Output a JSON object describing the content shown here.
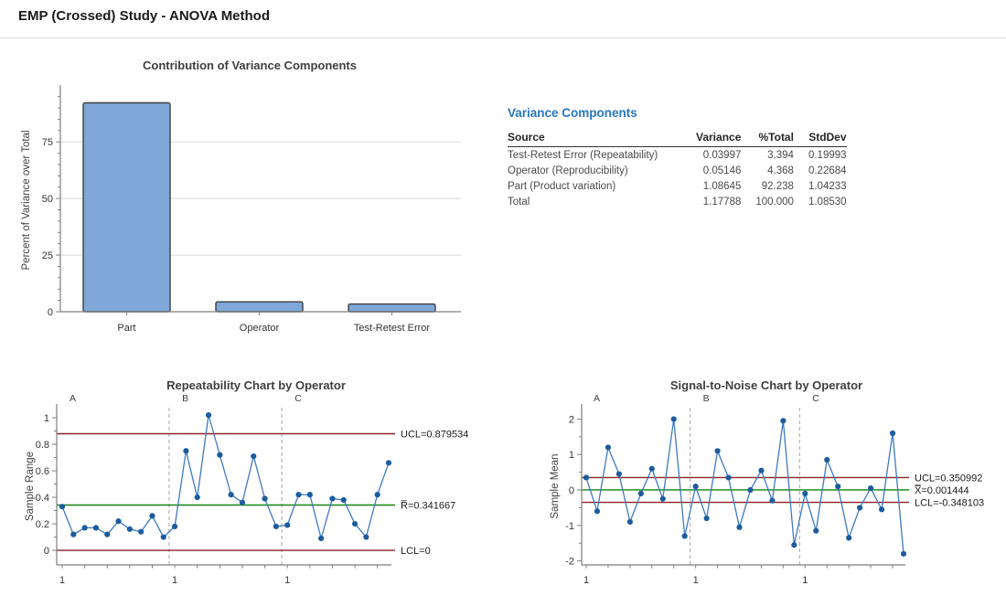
{
  "page": {
    "title": "EMP (Crossed) Study - ANOVA Method"
  },
  "colors": {
    "bar_fill": "#7FA8D9",
    "bar_border": "#3F3F3F",
    "line": "#3E7AC0",
    "point": "#1C5C9E",
    "limit": "#8B2222",
    "center": "#128412",
    "divider": "#A6A6A6",
    "grid": "#D9D9D9",
    "axis": "#7F7F7F",
    "tick_text": "#333333",
    "heading_blue": "#2776BE",
    "title_text": "#3F3F3F"
  },
  "table": {
    "title": "Variance Components",
    "headers": [
      "Source",
      "Variance",
      "%Total",
      "StdDev"
    ],
    "rows": [
      [
        "Test-Retest Error (Repeatability)",
        "0.03997",
        "3.394",
        "0.19993"
      ],
      [
        "Operator (Reproducibility)",
        "0.05146",
        "4.368",
        "0.22684"
      ],
      [
        "Part (Product variation)",
        "1.08645",
        "92.238",
        "1.04233"
      ],
      [
        "Total",
        "1.17788",
        "100.000",
        "1.08530"
      ]
    ]
  },
  "chart_data": [
    {
      "type": "bar",
      "title": "Contribution of Variance Components",
      "xlabel": "",
      "ylabel": "Percent of Variance over Total",
      "categories": [
        "Part",
        "Operator",
        "Test-Retest Error"
      ],
      "values": [
        92.238,
        4.368,
        3.394
      ],
      "yticks": [
        0,
        25,
        50,
        75
      ],
      "minor_step": 5,
      "ylim": [
        0,
        98.5
      ],
      "grid": true,
      "legend": "none"
    },
    {
      "type": "line",
      "subtype": "control-chart",
      "title": "Repeatability Chart by Operator",
      "ylabel": "Sample Range",
      "groups": [
        "A",
        "B",
        "C"
      ],
      "group_start_label": "1",
      "series": [
        {
          "name": "Sample Range",
          "values": [
            0.33,
            0.12,
            0.17,
            0.17,
            0.12,
            0.22,
            0.16,
            0.14,
            0.26,
            0.1,
            0.18,
            0.75,
            0.4,
            1.02,
            0.72,
            0.42,
            0.36,
            0.71,
            0.39,
            0.18,
            0.19,
            0.42,
            0.42,
            0.09,
            0.39,
            0.38,
            0.2,
            0.1,
            0.42,
            0.66
          ]
        }
      ],
      "yticks": [
        0,
        0.2,
        0.4,
        0.6,
        0.8,
        1
      ],
      "minor_step": 0.1,
      "ylim": [
        -0.11,
        1.076
      ],
      "grid": false,
      "lines": [
        {
          "id": "ucl",
          "label": "UCL=0.879534",
          "value": 0.879534,
          "role": "limit"
        },
        {
          "id": "center",
          "label": "R̅=0.341667",
          "value": 0.341667,
          "role": "center"
        },
        {
          "id": "lcl",
          "label": "LCL=0",
          "value": 0,
          "role": "limit"
        }
      ]
    },
    {
      "type": "line",
      "subtype": "control-chart",
      "title": "Signal-to-Noise Chart by Operator",
      "ylabel": "Sample Mean",
      "groups": [
        "A",
        "B",
        "C"
      ],
      "group_start_label": "1",
      "series": [
        {
          "name": "Sample Mean",
          "values": [
            0.35,
            -0.6,
            1.2,
            0.45,
            -0.9,
            -0.1,
            0.6,
            -0.25,
            2.0,
            -1.3,
            0.1,
            -0.8,
            1.1,
            0.35,
            -1.05,
            0.0,
            0.55,
            -0.3,
            1.95,
            -1.55,
            -0.1,
            -1.15,
            0.85,
            0.1,
            -1.35,
            -0.5,
            0.05,
            -0.55,
            1.6,
            -1.8
          ]
        }
      ],
      "yticks": [
        -2,
        -1,
        0,
        1,
        2
      ],
      "minor_step": 0.5,
      "ylim": [
        -2.113,
        2.32
      ],
      "grid": false,
      "lines": [
        {
          "id": "ucl",
          "label": "UCL=0.350992",
          "value": 0.350992,
          "role": "limit"
        },
        {
          "id": "center",
          "label": "X̿=0.001444",
          "value": 0.001444,
          "role": "center"
        },
        {
          "id": "lcl",
          "label": "LCL=-0.348103",
          "value": -0.348103,
          "role": "limit"
        }
      ]
    }
  ]
}
